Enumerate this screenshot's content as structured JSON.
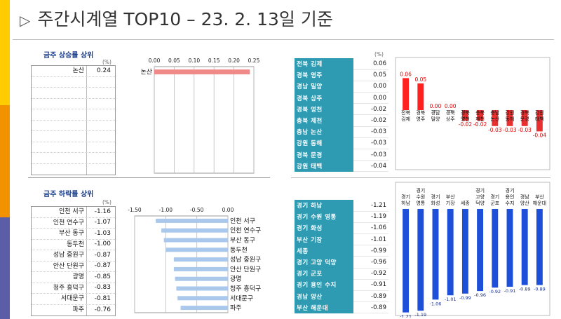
{
  "header": {
    "title": "주간시계열 TOP10 – 23. 2. 13일 기준"
  },
  "colors": {
    "bar_yellow": "#ffcc00",
    "bar_orange": "#f39200",
    "bar_purple": "#5b5ea6",
    "teal": "#2f9bb3",
    "rise": "#ff2020",
    "fall": "#1e4fd8"
  },
  "rise_section": {
    "title": "금주 상승률 상위",
    "unit": "(%)",
    "rows": [
      {
        "name": "논산",
        "value": "0.24"
      },
      {
        "name": "",
        "value": ""
      },
      {
        "name": "",
        "value": ""
      },
      {
        "name": "",
        "value": ""
      },
      {
        "name": "",
        "value": ""
      },
      {
        "name": "",
        "value": ""
      },
      {
        "name": "",
        "value": ""
      },
      {
        "name": "",
        "value": ""
      },
      {
        "name": "",
        "value": ""
      },
      {
        "name": "",
        "value": ""
      }
    ]
  },
  "fall_section": {
    "title": "금주 하락률 상위",
    "unit": "(%)",
    "rows": [
      {
        "name": "인천 서구",
        "value": "-1.16"
      },
      {
        "name": "인천 연수구",
        "value": "-1.07"
      },
      {
        "name": "부산 동구",
        "value": "-1.03"
      },
      {
        "name": "동두천",
        "value": "-1.00"
      },
      {
        "name": "성남 중원구",
        "value": "-0.87"
      },
      {
        "name": "안산 단원구",
        "value": "-0.87"
      },
      {
        "name": "광명",
        "value": "-0.85"
      },
      {
        "name": "청주 흥덕구",
        "value": "-0.83"
      },
      {
        "name": "서대문구",
        "value": "-0.81"
      },
      {
        "name": "파주",
        "value": "-0.76"
      }
    ]
  },
  "other_section": {
    "unit": "(%)",
    "rows": [
      {
        "name": "전북 김제",
        "value": "0.06"
      },
      {
        "name": "경북 영주",
        "value": "0.05"
      },
      {
        "name": "경남 밀양",
        "value": "0.00"
      },
      {
        "name": "경북 상주",
        "value": "0.00"
      },
      {
        "name": "경북 영천",
        "value": "-0.02"
      },
      {
        "name": "충북 제천",
        "value": "-0.02"
      },
      {
        "name": "충남 논산",
        "value": "-0.03"
      },
      {
        "name": "강원 동해",
        "value": "-0.03"
      },
      {
        "name": "경북 문경",
        "value": "-0.03"
      },
      {
        "name": "강원 태백",
        "value": "-0.04"
      }
    ]
  },
  "gyeonggi_section": {
    "rows": [
      {
        "name": "경기 하남",
        "value": "-1.21"
      },
      {
        "name": "경기 수원 영통",
        "value": "-1.19"
      },
      {
        "name": "경기 화성",
        "value": "-1.06"
      },
      {
        "name": "부산 기장",
        "value": "-1.01"
      },
      {
        "name": "세종",
        "value": "-0.99"
      },
      {
        "name": "경기 고양 덕양",
        "value": "-0.96"
      },
      {
        "name": "경기 군포",
        "value": "-0.92"
      },
      {
        "name": "경기 용인 수지",
        "value": "-0.91"
      },
      {
        "name": "경남 양산",
        "value": "-0.89"
      },
      {
        "name": "부산 해운대",
        "value": "-0.89"
      }
    ]
  },
  "chart_data": [
    {
      "type": "bar",
      "orientation": "horizontal",
      "categories": [
        "논산"
      ],
      "values": [
        0.24
      ],
      "xlim": [
        0,
        0.25
      ],
      "ticks": [
        "0.00",
        "0.05",
        "0.10",
        "0.15",
        "0.20",
        "0.25"
      ]
    },
    {
      "type": "bar",
      "orientation": "horizontal",
      "categories": [
        "인천 서구",
        "인천 연수구",
        "부산 동구",
        "동두천",
        "성남 중원구",
        "안산 단원구",
        "광명",
        "청주 흥덕구",
        "서대문구",
        "파주"
      ],
      "values": [
        -1.16,
        -1.07,
        -1.03,
        -1.0,
        -0.87,
        -0.87,
        -0.85,
        -0.83,
        -0.81,
        -0.76
      ],
      "xlim": [
        -1.5,
        0
      ],
      "ticks": [
        "-1.50",
        "-1.00",
        "-0.50",
        "0.00"
      ]
    },
    {
      "type": "bar",
      "orientation": "vertical",
      "labels": [
        [
          "전북",
          "김제"
        ],
        [
          "경북",
          "영주"
        ],
        [
          "경남",
          "밀양"
        ],
        [
          "경북",
          "상주"
        ],
        [
          "경북",
          "영천"
        ],
        [
          "충북",
          "제천"
        ],
        [
          "충남",
          "논산"
        ],
        [
          "강원",
          "동해"
        ],
        [
          "경북",
          "문경"
        ],
        [
          "강원",
          "태백"
        ]
      ],
      "values": [
        0.06,
        0.05,
        0.0,
        0.0,
        -0.02,
        -0.02,
        -0.03,
        -0.03,
        -0.03,
        -0.04
      ],
      "value_labels": [
        "0.06",
        "0.05",
        "0.00",
        "0.00",
        "-0.02",
        "-0.02",
        "-0.03",
        "-0.03",
        "-0.03",
        "-0.04"
      ],
      "ylim": [
        -0.05,
        0.07
      ]
    },
    {
      "type": "bar",
      "orientation": "vertical",
      "labels": [
        [
          "경기",
          "하남"
        ],
        [
          "경기",
          "수원",
          "영통"
        ],
        [
          "경기",
          "화성"
        ],
        [
          "부산",
          "기장"
        ],
        [
          "세종"
        ],
        [
          "경기",
          "고양",
          "덕양"
        ],
        [
          "경기",
          "군포"
        ],
        [
          "경기",
          "용인",
          "수지"
        ],
        [
          "경남",
          "양산"
        ],
        [
          "부산",
          "해운대"
        ]
      ],
      "values": [
        -1.21,
        -1.19,
        -1.06,
        -1.01,
        -0.99,
        -0.96,
        -0.92,
        -0.91,
        -0.89,
        -0.89
      ],
      "value_labels": [
        "-1.21",
        "-1.19",
        "-1.06",
        "-1.01",
        "-0.99",
        "-0.96",
        "-0.92",
        "-0.91",
        "-0.89",
        "-0.89"
      ],
      "ylim": [
        -1.25,
        0
      ]
    }
  ]
}
